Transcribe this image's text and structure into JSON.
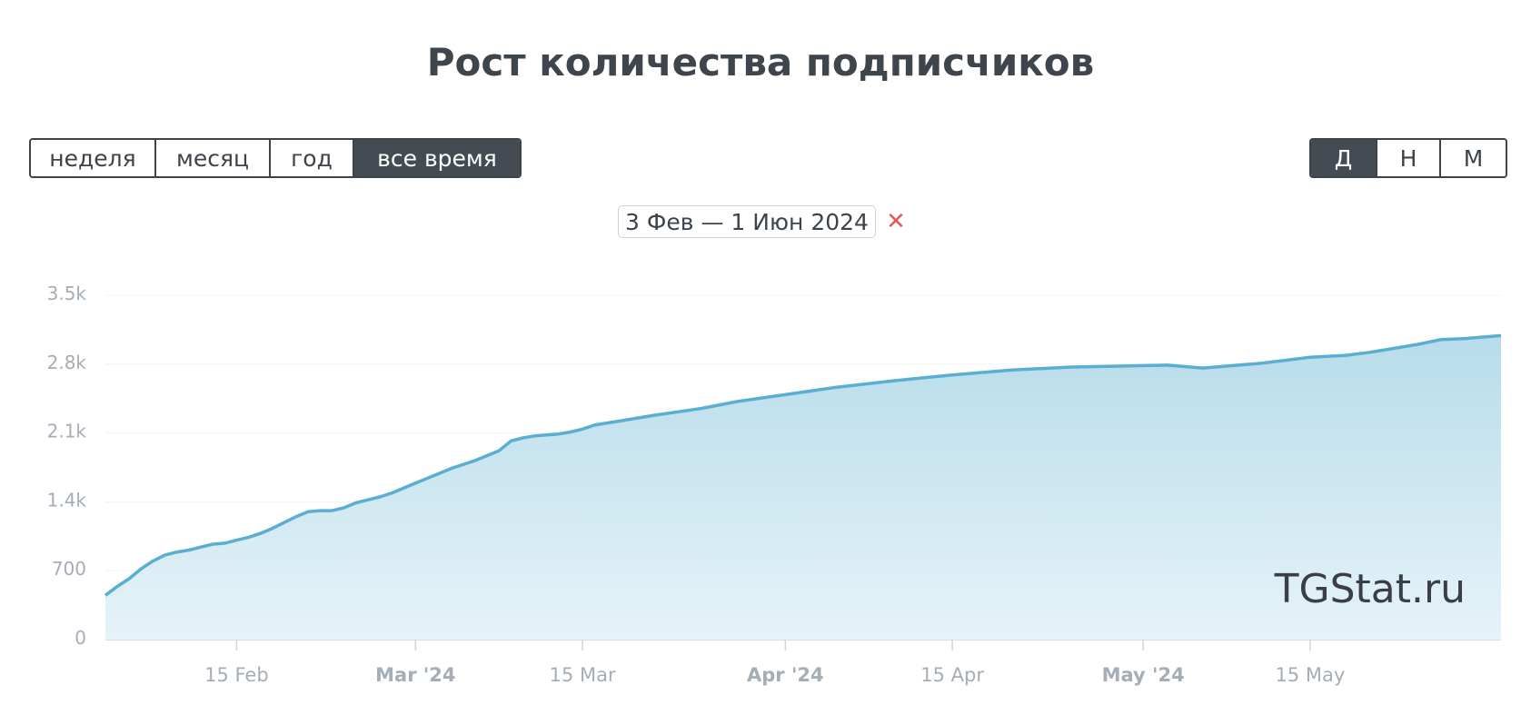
{
  "title": "Рост количества подписчиков",
  "period_buttons": [
    {
      "label": "неделя",
      "active": false
    },
    {
      "label": "месяц",
      "active": false
    },
    {
      "label": "год",
      "active": false
    },
    {
      "label": "все время",
      "active": true
    }
  ],
  "granularity_buttons": [
    {
      "label": "Д",
      "active": true
    },
    {
      "label": "Н",
      "active": false
    },
    {
      "label": "М",
      "active": false
    }
  ],
  "date_range": {
    "label": "3 Фев — 1 Июн 2024",
    "close_icon": "close-icon",
    "close_glyph": "✕"
  },
  "watermark": "TGStat.ru",
  "colors": {
    "line": "#5aaed2",
    "fill_top": "#b7dcea",
    "fill_bottom": "#e6f3f9",
    "active": "#454b53",
    "close": "#e05a5a"
  },
  "chart_data": {
    "type": "area",
    "title": "",
    "xlabel": "",
    "ylabel": "",
    "ylim": [
      0,
      3500
    ],
    "y_ticks": [
      {
        "value": 0,
        "label": "0"
      },
      {
        "value": 700,
        "label": "700"
      },
      {
        "value": 1400,
        "label": "1.4k"
      },
      {
        "value": 2100,
        "label": "2.1k"
      },
      {
        "value": 2800,
        "label": "2.8k"
      },
      {
        "value": 3500,
        "label": "3.5k"
      }
    ],
    "x_range": [
      "2024-02-04",
      "2024-05-31"
    ],
    "x_ticks": [
      {
        "date": "2024-02-15",
        "label": "15 Feb",
        "bold": false
      },
      {
        "date": "2024-03-01",
        "label": "Mar '24",
        "bold": true
      },
      {
        "date": "2024-03-15",
        "label": "15 Mar",
        "bold": false
      },
      {
        "date": "2024-04-01",
        "label": "Apr '24",
        "bold": true
      },
      {
        "date": "2024-04-15",
        "label": "15 Apr",
        "bold": false
      },
      {
        "date": "2024-05-01",
        "label": "May '24",
        "bold": true
      },
      {
        "date": "2024-05-15",
        "label": "15 May",
        "bold": false
      }
    ],
    "grid": true,
    "series": [
      {
        "x": [
          "2024-02-04",
          "2024-02-05",
          "2024-02-06",
          "2024-02-07",
          "2024-02-08",
          "2024-02-09",
          "2024-02-10",
          "2024-02-11",
          "2024-02-12",
          "2024-02-13",
          "2024-02-14",
          "2024-02-15",
          "2024-02-16",
          "2024-02-17",
          "2024-02-18",
          "2024-02-19",
          "2024-02-20",
          "2024-02-21",
          "2024-02-22",
          "2024-02-23",
          "2024-02-24",
          "2024-02-25",
          "2024-02-26",
          "2024-02-27",
          "2024-02-28",
          "2024-02-29",
          "2024-03-01",
          "2024-03-02",
          "2024-03-03",
          "2024-03-04",
          "2024-03-05",
          "2024-03-06",
          "2024-03-07",
          "2024-03-08",
          "2024-03-09",
          "2024-03-10",
          "2024-03-11",
          "2024-03-12",
          "2024-03-13",
          "2024-03-14",
          "2024-03-15",
          "2024-03-16",
          "2024-03-18",
          "2024-03-21",
          "2024-03-25",
          "2024-03-28",
          "2024-04-01",
          "2024-04-05",
          "2024-04-10",
          "2024-04-15",
          "2024-04-20",
          "2024-04-25",
          "2024-04-29",
          "2024-05-03",
          "2024-05-06",
          "2024-05-09",
          "2024-05-11",
          "2024-05-13",
          "2024-05-15",
          "2024-05-18",
          "2024-05-20",
          "2024-05-22",
          "2024-05-24",
          "2024-05-26",
          "2024-05-28",
          "2024-05-31"
        ],
        "values": [
          450,
          540,
          620,
          720,
          800,
          860,
          890,
          910,
          940,
          970,
          980,
          1010,
          1040,
          1080,
          1130,
          1190,
          1250,
          1300,
          1310,
          1310,
          1340,
          1390,
          1420,
          1450,
          1490,
          1540,
          1590,
          1640,
          1690,
          1740,
          1780,
          1820,
          1870,
          1920,
          2020,
          2050,
          2070,
          2080,
          2090,
          2110,
          2140,
          2180,
          2220,
          2280,
          2350,
          2420,
          2490,
          2560,
          2630,
          2690,
          2740,
          2770,
          2780,
          2790,
          2760,
          2790,
          2810,
          2840,
          2870,
          2890,
          2920,
          2960,
          3000,
          3050,
          3060,
          3090
        ]
      }
    ]
  }
}
